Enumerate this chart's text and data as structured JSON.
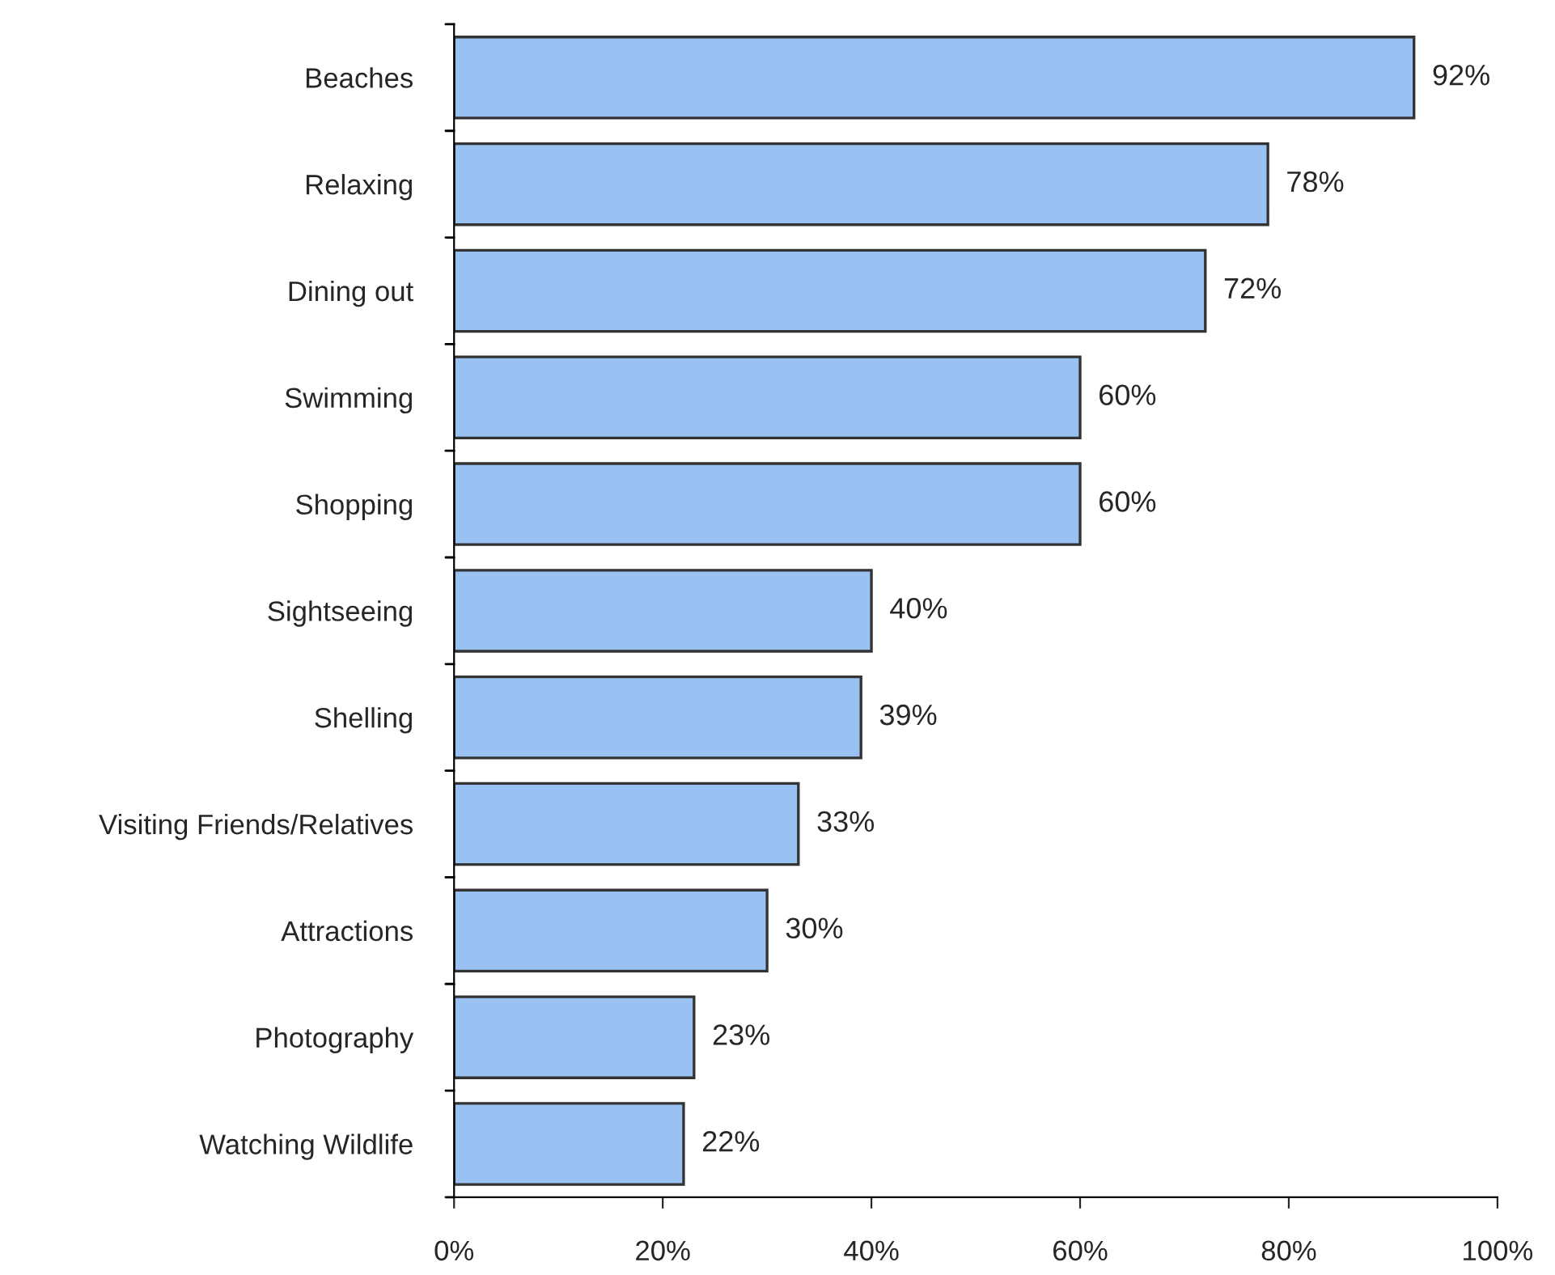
{
  "chart_data": {
    "type": "bar",
    "orientation": "horizontal",
    "categories": [
      "Beaches",
      "Relaxing",
      "Dining out",
      "Swimming",
      "Shopping",
      "Sightseeing",
      "Shelling",
      "Visiting Friends/Relatives",
      "Attractions",
      "Photography",
      "Watching Wildlife"
    ],
    "values": [
      92,
      78,
      72,
      60,
      60,
      40,
      39,
      33,
      30,
      23,
      22
    ],
    "value_labels": [
      "92%",
      "78%",
      "72%",
      "60%",
      "60%",
      "40%",
      "39%",
      "33%",
      "30%",
      "23%",
      "22%"
    ],
    "color": "#99c2f2",
    "xlim": [
      0,
      100
    ],
    "xticks": [
      {
        "value": 0,
        "label": "0%"
      },
      {
        "value": 20,
        "label": "20%"
      },
      {
        "value": 40,
        "label": "40%"
      },
      {
        "value": 60,
        "label": "60%"
      },
      {
        "value": 80,
        "label": "80%"
      },
      {
        "value": 100,
        "label": "100%"
      }
    ],
    "grid": false,
    "legend": false
  }
}
